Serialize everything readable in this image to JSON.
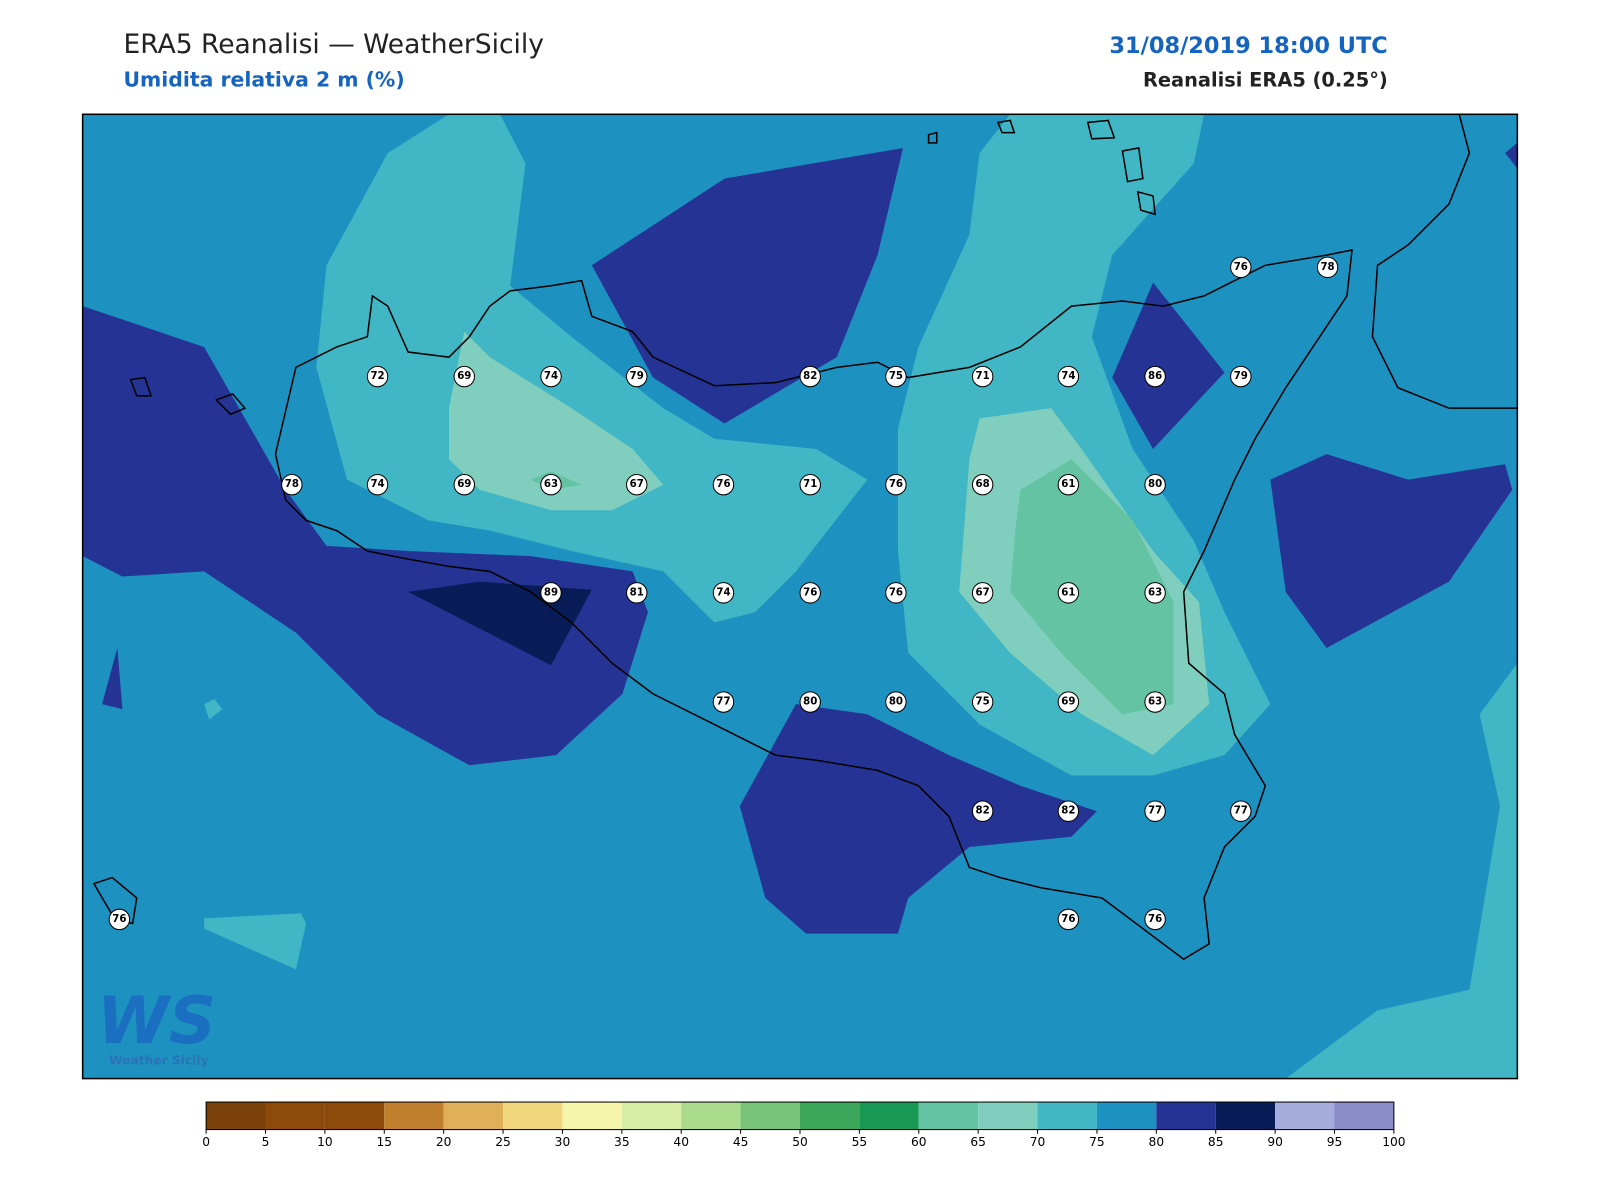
{
  "header": {
    "title": "ERA5 Reanalisi — WeatherSicily",
    "subtitle": "Umidita relativa 2 m (%)",
    "datetime": "31/08/2019 18:00 UTC",
    "source": "Reanalisi ERA5 (0.25°)"
  },
  "logo": {
    "mark": "WS",
    "name": "Weather Sicily"
  },
  "stations": [
    {
      "value": "76"
    },
    {
      "value": "78"
    },
    {
      "value": "72"
    },
    {
      "value": "69"
    },
    {
      "value": "74"
    },
    {
      "value": "79"
    },
    {
      "value": "82"
    },
    {
      "value": "75"
    },
    {
      "value": "71"
    },
    {
      "value": "74"
    },
    {
      "value": "86"
    },
    {
      "value": "79"
    },
    {
      "value": "78"
    },
    {
      "value": "74"
    },
    {
      "value": "69"
    },
    {
      "value": "63"
    },
    {
      "value": "67"
    },
    {
      "value": "76"
    },
    {
      "value": "71"
    },
    {
      "value": "76"
    },
    {
      "value": "68"
    },
    {
      "value": "61"
    },
    {
      "value": "80"
    },
    {
      "value": "89"
    },
    {
      "value": "81"
    },
    {
      "value": "74"
    },
    {
      "value": "76"
    },
    {
      "value": "76"
    },
    {
      "value": "67"
    },
    {
      "value": "61"
    },
    {
      "value": "63"
    },
    {
      "value": "77"
    },
    {
      "value": "80"
    },
    {
      "value": "80"
    },
    {
      "value": "75"
    },
    {
      "value": "69"
    },
    {
      "value": "63"
    },
    {
      "value": "82"
    },
    {
      "value": "82"
    },
    {
      "value": "77"
    },
    {
      "value": "77"
    },
    {
      "value": "76"
    },
    {
      "value": "76"
    },
    {
      "value": "76"
    }
  ],
  "colorbar": {
    "ticks": [
      0,
      5,
      10,
      15,
      20,
      25,
      30,
      35,
      40,
      45,
      50,
      55,
      60,
      65,
      70,
      75,
      80,
      85,
      90,
      95,
      100
    ],
    "colors": [
      "#7a420a",
      "#8c4a0b",
      "#8c4a0b",
      "#bf7f2d",
      "#dfb057",
      "#f0d67d",
      "#f5f5a9",
      "#d8eda6",
      "#abdc8e",
      "#77c377",
      "#3ca65b",
      "#199a54",
      "#64c3a3",
      "#80cebe",
      "#41b6c4",
      "#1d91c0",
      "#253494",
      "#081d58",
      "#a6acdc",
      "#8c8cc8"
    ]
  }
}
